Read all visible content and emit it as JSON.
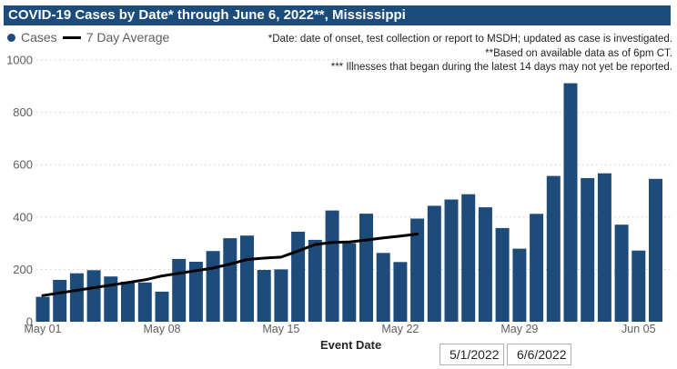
{
  "window": {
    "title": "COVID-19 Cases by Date* through June 6, 2022**, Mississippi"
  },
  "legend": {
    "cases_label": "Cases",
    "avg_label": "7 Day Average"
  },
  "footnotes": {
    "line1": "*Date: date of onset, test collection or report to MSDH; updated as case is investigated.",
    "line2": "**Based on available data as of 6pm CT.",
    "line3": "*** Illnesses that began during the latest 14 days may not yet be reported."
  },
  "x_axis": {
    "label": "Event Date",
    "tick_labels": [
      "May 01",
      "May 08",
      "May 15",
      "May 22",
      "May 29",
      "Jun 05"
    ]
  },
  "y_axis": {
    "tick_labels": [
      "0",
      "200",
      "400",
      "600",
      "800",
      "1000"
    ],
    "min": 0,
    "max": 1000
  },
  "filters": {
    "start_date": "5/1/2022",
    "end_date": "6/6/2022"
  },
  "colors": {
    "bar": "#1d4b7a",
    "title_bg": "#1b4c7c",
    "avg_line": "#000000",
    "axis_text": "#605e5c",
    "note_text": "#252423",
    "grid": "#c9c9c9"
  },
  "chart_data": {
    "type": "bar",
    "title": "COVID-19 Cases by Date* through June 6, 2022**, Mississippi",
    "xlabel": "Event Date",
    "ylabel": "Cases",
    "ylim": [
      0,
      1000
    ],
    "grid": "horizontal-dotted",
    "legend_position": "top-left",
    "categories": [
      "May 01",
      "May 02",
      "May 03",
      "May 04",
      "May 05",
      "May 06",
      "May 07",
      "May 08",
      "May 09",
      "May 10",
      "May 11",
      "May 12",
      "May 13",
      "May 14",
      "May 15",
      "May 16",
      "May 17",
      "May 18",
      "May 19",
      "May 20",
      "May 21",
      "May 22",
      "May 23",
      "May 24",
      "May 25",
      "May 26",
      "May 27",
      "May 28",
      "May 29",
      "May 30",
      "May 31",
      "Jun 01",
      "Jun 02",
      "Jun 03",
      "Jun 04",
      "Jun 05",
      "Jun 06"
    ],
    "series": [
      {
        "name": "Cases",
        "type": "bar",
        "color": "#1d4b7a",
        "values": [
          95,
          160,
          185,
          197,
          173,
          153,
          150,
          115,
          240,
          229,
          270,
          319,
          329,
          198,
          200,
          344,
          313,
          425,
          300,
          413,
          263,
          228,
          394,
          443,
          467,
          487,
          437,
          358,
          279,
          412,
          557,
          911,
          549,
          567,
          371,
          272,
          546
        ]
      },
      {
        "name": "7 Day Average",
        "type": "line",
        "color": "#000000",
        "values": [
          100,
          110,
          120,
          130,
          140,
          150,
          160,
          175,
          185,
          195,
          205,
          220,
          238,
          243,
          247,
          270,
          295,
          303,
          305,
          312,
          320,
          327,
          335,
          null,
          null,
          null,
          null,
          null,
          null,
          null,
          null,
          null,
          null,
          null,
          null,
          null,
          null
        ]
      }
    ],
    "x_tick_indices": [
      0,
      7,
      14,
      21,
      28,
      35
    ],
    "y_ticks": [
      0,
      200,
      400,
      600,
      800,
      1000
    ]
  }
}
